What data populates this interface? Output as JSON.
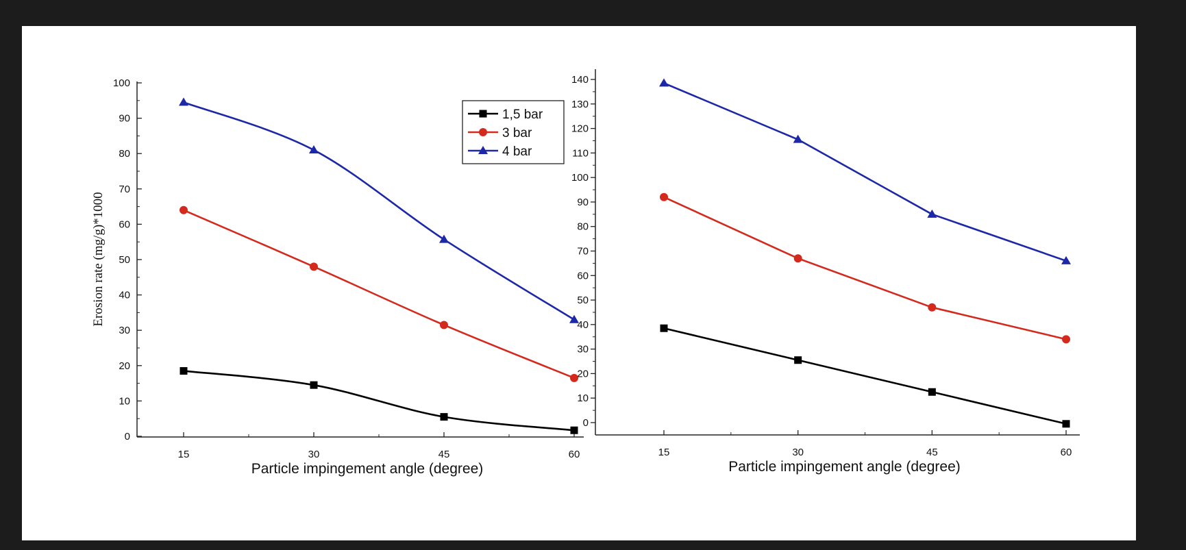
{
  "chart_data": [
    {
      "type": "line",
      "x": [
        15,
        30,
        45,
        60
      ],
      "xlabel": "Particle impingement angle (degree)",
      "ylabel": "Erosion rate (mg/g)*1000",
      "ylim": [
        0,
        100
      ],
      "yticks": [
        0,
        10,
        20,
        30,
        40,
        50,
        60,
        70,
        80,
        90,
        100
      ],
      "smooth": true,
      "legend": "top-right",
      "series": [
        {
          "name": "1,5 bar",
          "color": "#000000",
          "marker": "square",
          "values": [
            18.5,
            14.5,
            5.5,
            1.7
          ]
        },
        {
          "name": "3 bar",
          "color": "#d42a1e",
          "marker": "circle",
          "values": [
            64,
            48,
            31.5,
            16.5
          ]
        },
        {
          "name": "4 bar",
          "color": "#1c28a8",
          "marker": "triangle",
          "values": [
            94.5,
            81,
            55.7,
            33
          ]
        }
      ]
    },
    {
      "type": "line",
      "x": [
        15,
        30,
        45,
        60
      ],
      "xlabel": "Particle impingement angle (degree)",
      "ylabel": "",
      "ylim": [
        0,
        140
      ],
      "yticks": [
        0,
        10,
        20,
        30,
        40,
        50,
        60,
        70,
        80,
        90,
        100,
        110,
        120,
        130,
        140
      ],
      "smooth": false,
      "series": [
        {
          "color": "#000000",
          "marker": "square",
          "values": [
            38.5,
            25.5,
            12.5,
            -0.5
          ]
        },
        {
          "color": "#d42a1e",
          "marker": "circle",
          "values": [
            92,
            67,
            47,
            34
          ]
        },
        {
          "color": "#1c28a8",
          "marker": "triangle",
          "values": [
            138.5,
            115.5,
            85,
            66
          ]
        }
      ]
    }
  ]
}
